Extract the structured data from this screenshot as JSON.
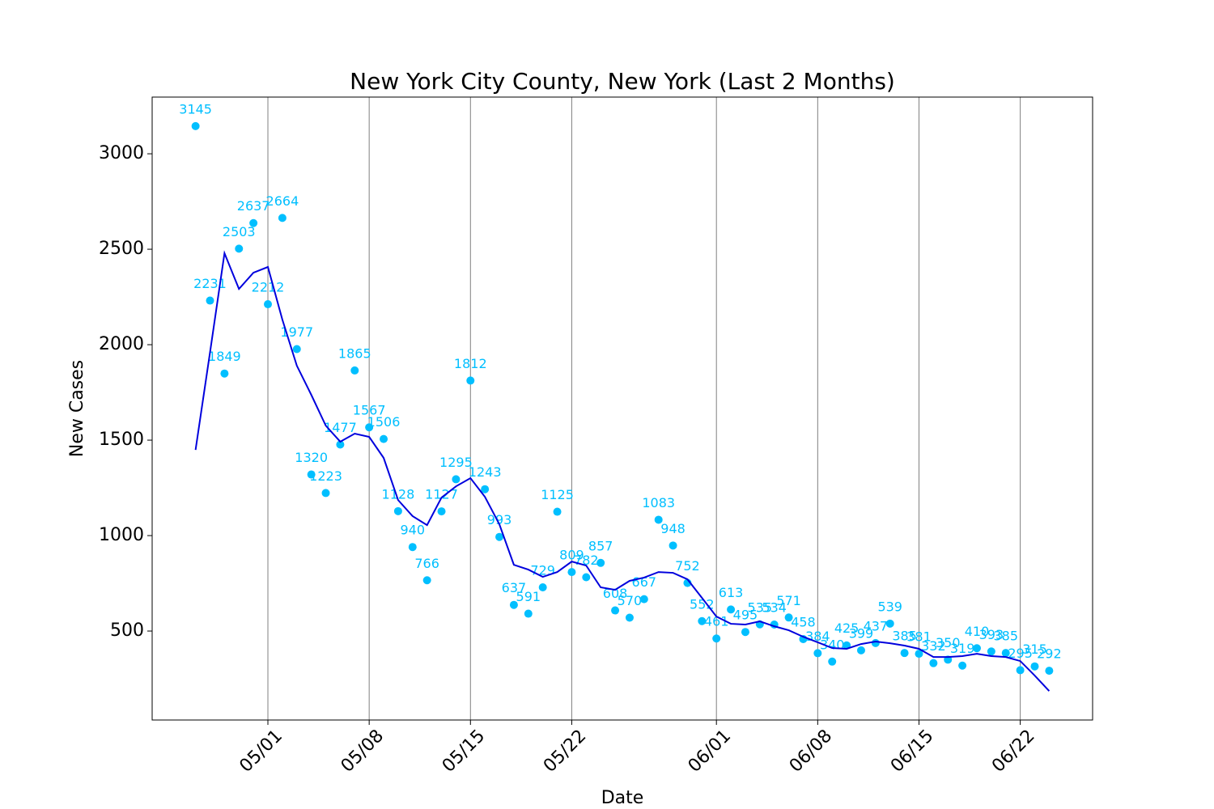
{
  "chart_data": {
    "type": "line",
    "title": "New York City County, New York (Last 2 Months)",
    "x_label": "Date",
    "y_label": "New Cases",
    "x": [
      "04/26",
      "04/27",
      "04/28",
      "04/29",
      "04/30",
      "05/01",
      "05/02",
      "05/03",
      "05/04",
      "05/05",
      "05/06",
      "05/07",
      "05/08",
      "05/09",
      "05/10",
      "05/11",
      "05/12",
      "05/13",
      "05/14",
      "05/15",
      "05/16",
      "05/17",
      "05/18",
      "05/19",
      "05/20",
      "05/21",
      "05/22",
      "05/23",
      "05/24",
      "05/25",
      "05/26",
      "05/27",
      "05/28",
      "05/29",
      "05/30",
      "05/31",
      "06/01",
      "06/02",
      "06/03",
      "06/04",
      "06/05",
      "06/06",
      "06/07",
      "06/08",
      "06/09",
      "06/10",
      "06/11",
      "06/12",
      "06/13",
      "06/14",
      "06/15",
      "06/16",
      "06/17",
      "06/18",
      "06/19",
      "06/20",
      "06/21",
      "06/22",
      "06/23",
      "06/24"
    ],
    "series": [
      {
        "color": "#00bfff",
        "marker": "point",
        "values": [
          3145,
          2231,
          1849,
          2503,
          2637,
          2212,
          2664,
          1977,
          1320,
          1223,
          1477,
          1865,
          1567,
          1506,
          1128,
          940,
          766,
          1127,
          1295,
          1812,
          1243,
          993,
          637,
          591,
          729,
          1125,
          809,
          782,
          857,
          608,
          570,
          667,
          1083,
          948,
          752,
          552,
          461,
          613,
          495,
          535,
          534,
          571,
          458,
          384,
          340,
          425,
          399,
          437,
          539,
          385,
          381,
          332,
          350,
          319,
          410,
          393,
          385,
          295,
          315,
          292
        ]
      },
      {
        "color": "#0000dd",
        "marker": "line",
        "values": [
          1449,
          1960,
          2479,
          2292,
          2377,
          2407,
          2131,
          1890,
          1737,
          1576,
          1492,
          1534,
          1517,
          1407,
          1186,
          1102,
          1055,
          1199,
          1258,
          1301,
          1203,
          1059,
          847,
          822,
          784,
          809,
          864,
          843,
          729,
          716,
          763,
          780,
          809,
          805,
          771,
          674,
          576,
          538,
          534,
          551,
          525,
          504,
          470,
          441,
          411,
          407,
          432,
          445,
          436,
          424,
          407,
          364,
          364,
          369,
          381,
          369,
          364,
          343,
          267,
          186
        ]
      }
    ],
    "xlim": [
      "04/23",
      "06/27"
    ],
    "xticks": [
      "05/01",
      "05/08",
      "05/15",
      "05/22",
      "06/01",
      "06/08",
      "06/15",
      "06/22"
    ],
    "ylim": [
      34,
      3297
    ],
    "yticks": [
      500,
      1000,
      1500,
      2000,
      2500,
      3000
    ],
    "grid": "x"
  }
}
